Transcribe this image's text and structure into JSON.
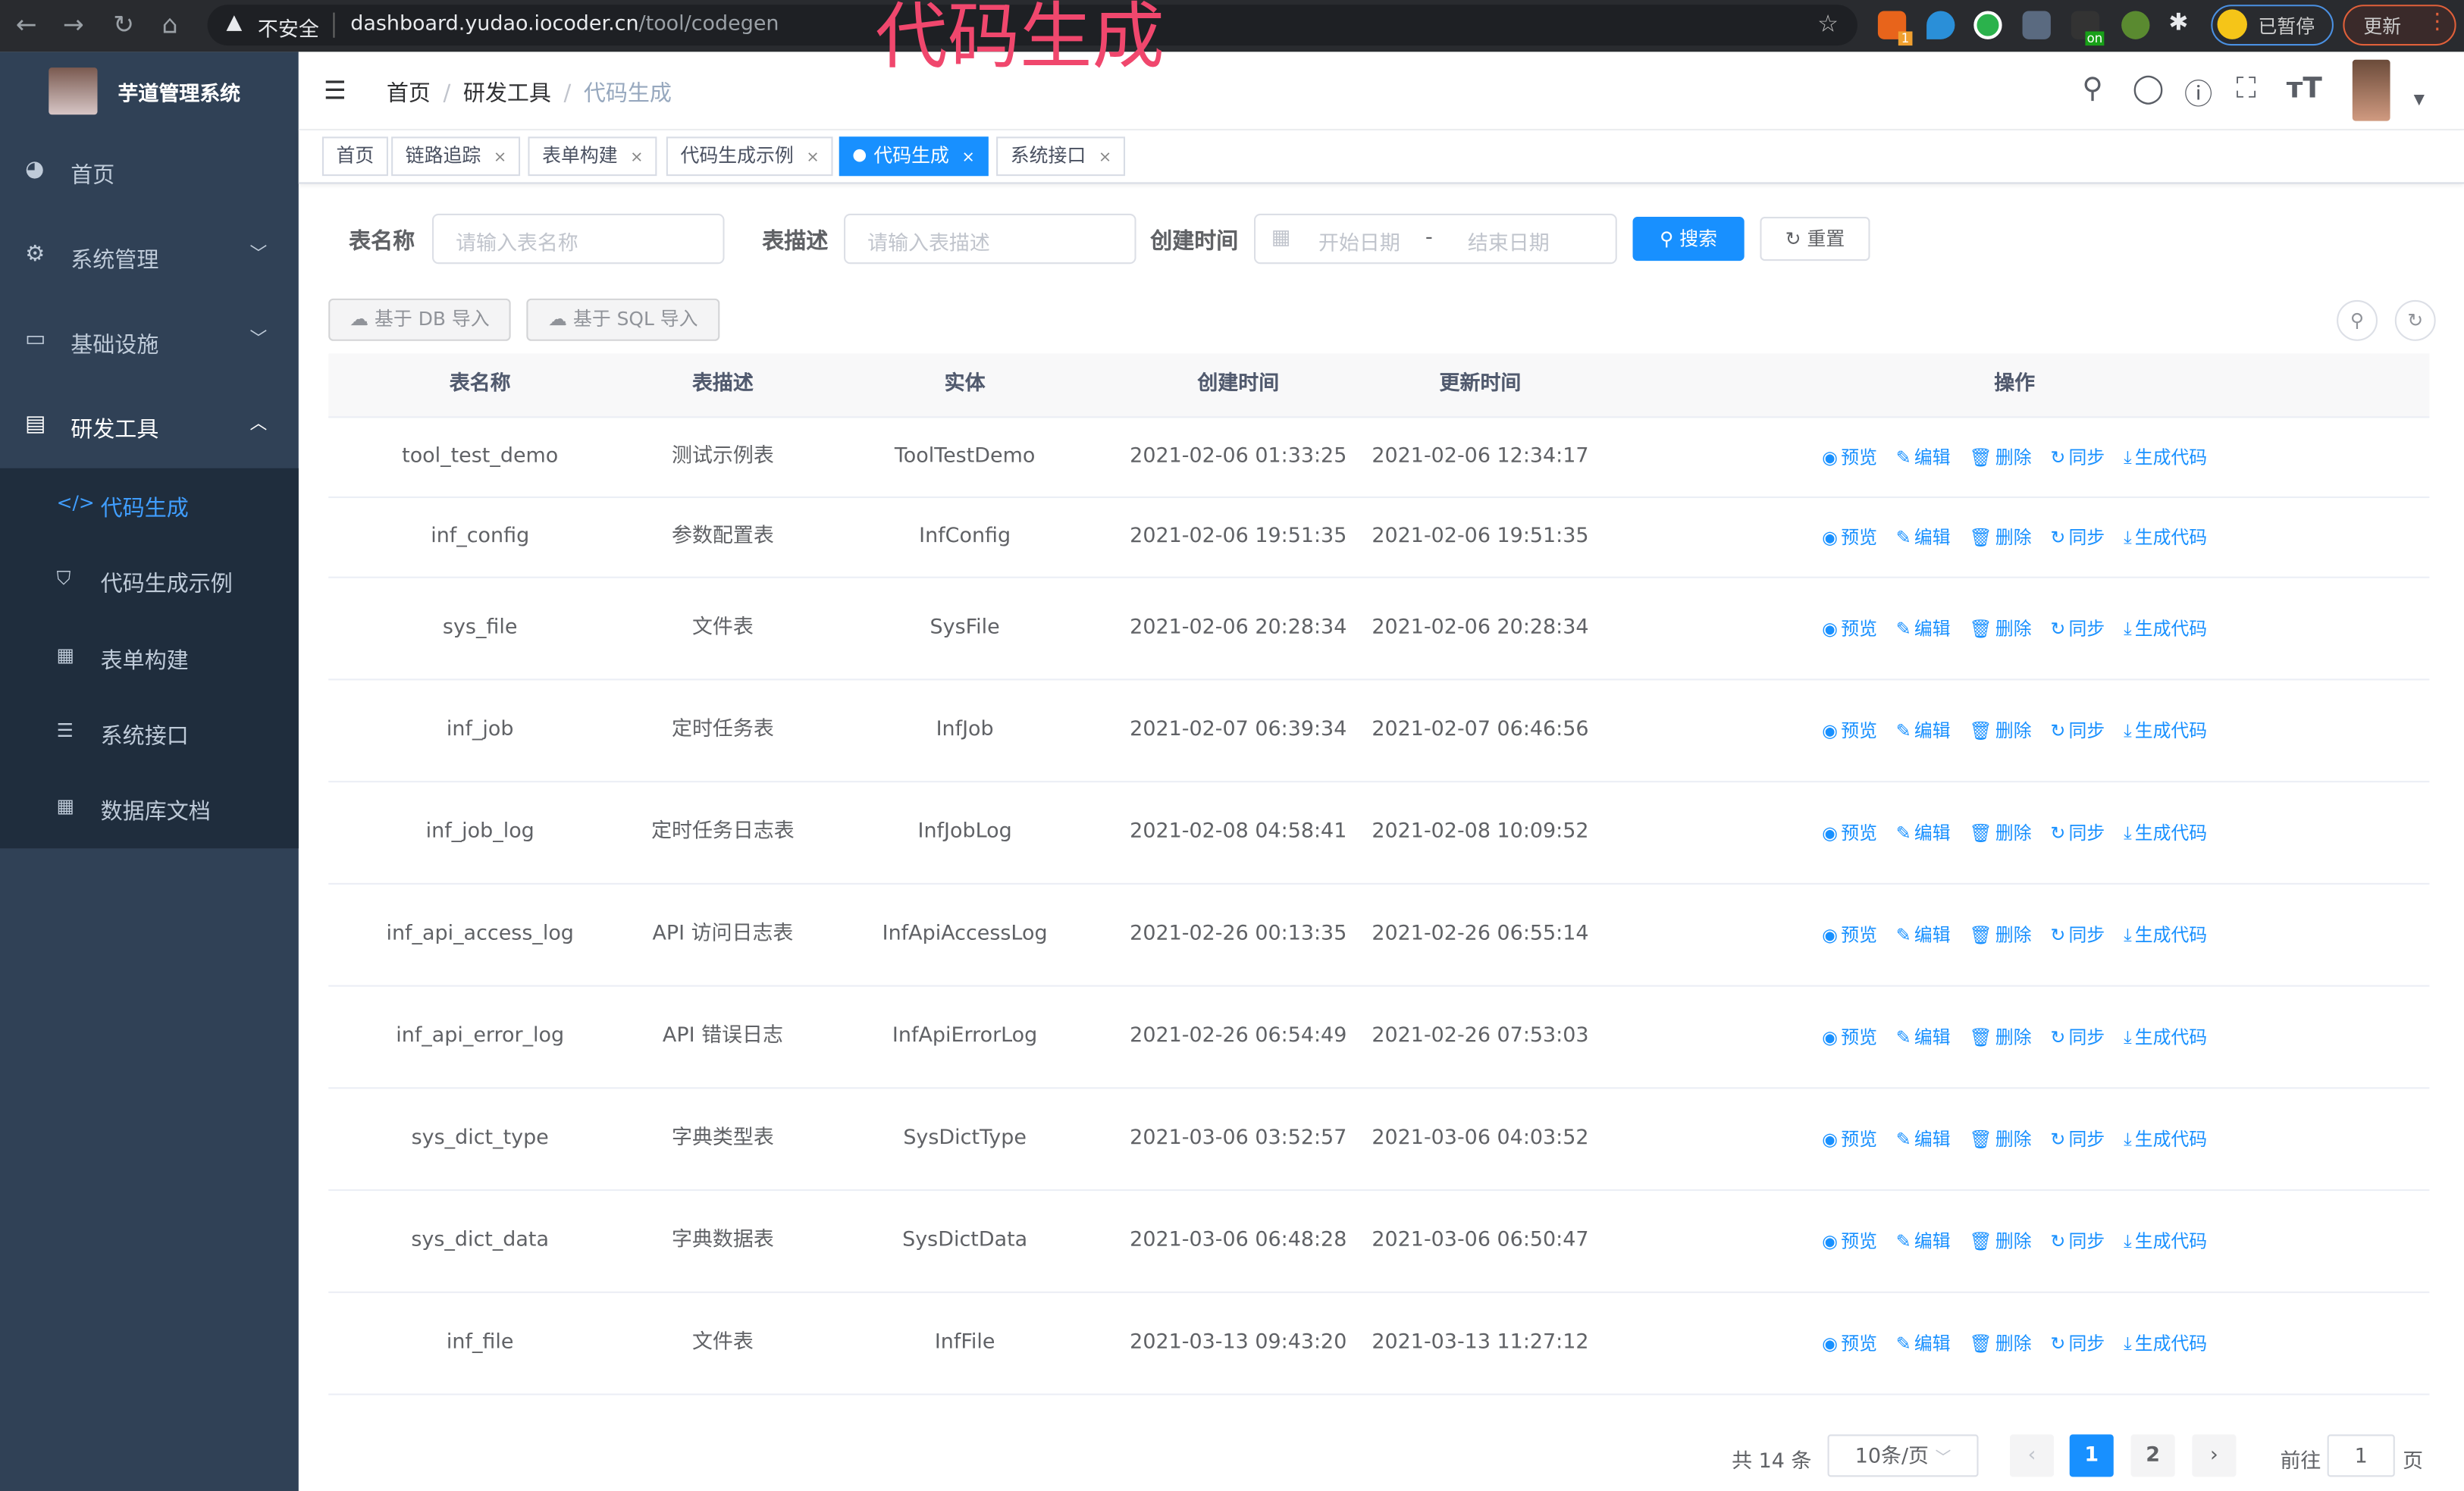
{
  "browser": {
    "insecure_label": "不安全",
    "url_host": "dashboard.yudao.iocoder.cn",
    "url_path": "/tool/codegen",
    "paused_label": "已暂停",
    "update_label": "更新",
    "ext_badge": "1",
    "ext_on": "on"
  },
  "overlay_title": "代码生成",
  "sidebar": {
    "app_title": "芋道管理系统",
    "menu": [
      {
        "label": "首页",
        "icon": "dashboard-icon"
      },
      {
        "label": "系统管理",
        "icon": "gear-icon"
      },
      {
        "label": "基础设施",
        "icon": "monitor-icon"
      },
      {
        "label": "研发工具",
        "icon": "toolbox-icon"
      }
    ],
    "submenu": [
      {
        "label": "代码生成",
        "icon": "code-icon",
        "active": true
      },
      {
        "label": "代码生成示例",
        "icon": "shield-icon"
      },
      {
        "label": "表单构建",
        "icon": "form-icon"
      },
      {
        "label": "系统接口",
        "icon": "sliders-icon"
      },
      {
        "label": "数据库文档",
        "icon": "table-icon"
      }
    ]
  },
  "breadcrumb": [
    "首页",
    "研发工具",
    "代码生成"
  ],
  "tags": [
    {
      "label": "首页",
      "closable": false
    },
    {
      "label": "链路追踪",
      "closable": true
    },
    {
      "label": "表单构建",
      "closable": true
    },
    {
      "label": "代码生成示例",
      "closable": true
    },
    {
      "label": "代码生成",
      "closable": true,
      "active": true
    },
    {
      "label": "系统接口",
      "closable": true
    }
  ],
  "search": {
    "table_name_label": "表名称",
    "table_name_placeholder": "请输入表名称",
    "table_desc_label": "表描述",
    "table_desc_placeholder": "请输入表描述",
    "create_time_label": "创建时间",
    "start_placeholder": "开始日期",
    "range_sep": "-",
    "end_placeholder": "结束日期",
    "search_button": "搜索",
    "reset_button": "重置"
  },
  "toolbar": {
    "import_db": "基于 DB 导入",
    "import_sql": "基于 SQL 导入"
  },
  "table": {
    "headers": [
      "表名称",
      "表描述",
      "实体",
      "创建时间",
      "更新时间",
      "操作"
    ],
    "actions": [
      {
        "label": "预览",
        "icon": "eye-icon"
      },
      {
        "label": "编辑",
        "icon": "edit-icon"
      },
      {
        "label": "删除",
        "icon": "trash-icon"
      },
      {
        "label": "同步",
        "icon": "refresh-icon"
      },
      {
        "label": "生成代码",
        "icon": "download-icon"
      }
    ],
    "rows": [
      [
        "tool_test_demo",
        "测试示例表",
        "ToolTestDemo",
        "2021-02-06 01:33:25",
        "2021-02-06 12:34:17"
      ],
      [
        "inf_config",
        "参数配置表",
        "InfConfig",
        "2021-02-06 19:51:35",
        "2021-02-06 19:51:35"
      ],
      [
        "sys_file",
        "文件表",
        "SysFile",
        "2021-02-06 20:28:34",
        "2021-02-06 20:28:34"
      ],
      [
        "inf_job",
        "定时任务表",
        "InfJob",
        "2021-02-07 06:39:34",
        "2021-02-07 06:46:56"
      ],
      [
        "inf_job_log",
        "定时任务日志表",
        "InfJobLog",
        "2021-02-08 04:58:41",
        "2021-02-08 10:09:52"
      ],
      [
        "inf_api_access_log",
        "API 访问日志表",
        "InfApiAccessLog",
        "2021-02-26 00:13:35",
        "2021-02-26 06:55:14"
      ],
      [
        "inf_api_error_log",
        "API 错误日志",
        "InfApiErrorLog",
        "2021-02-26 06:54:49",
        "2021-02-26 07:53:03"
      ],
      [
        "sys_dict_type",
        "字典类型表",
        "SysDictType",
        "2021-03-06 03:52:57",
        "2021-03-06 04:03:52"
      ],
      [
        "sys_dict_data",
        "字典数据表",
        "SysDictData",
        "2021-03-06 06:48:28",
        "2021-03-06 06:50:47"
      ],
      [
        "inf_file",
        "文件表",
        "InfFile",
        "2021-03-13 09:43:20",
        "2021-03-13 11:27:12"
      ]
    ]
  },
  "pagination": {
    "total_label": "共 14 条",
    "page_size": "10条/页",
    "pages": [
      "1",
      "2"
    ],
    "current_page": "1",
    "goto_label": "前往",
    "goto_value": "1",
    "page_unit": "页"
  },
  "colors": {
    "primary": "#1890ff",
    "sidebar": "#304156",
    "submenu": "#1f2d3d",
    "overlay": "#f0476d"
  }
}
